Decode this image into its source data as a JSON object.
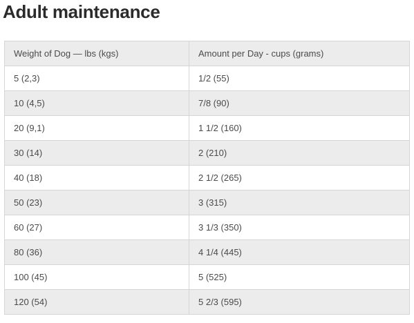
{
  "title": "Adult maintenance",
  "table": {
    "headers": [
      "Weight of Dog — lbs (kgs)",
      "Amount per Day - cups (grams)"
    ],
    "rows": [
      [
        "5 (2,3)",
        "1/2 (55)"
      ],
      [
        "10 (4,5)",
        "7/8 (90)"
      ],
      [
        "20 (9,1)",
        "1 1/2 (160)"
      ],
      [
        "30 (14)",
        "2 (210)"
      ],
      [
        "40 (18)",
        "2 1/2 (265)"
      ],
      [
        "50 (23)",
        "3 (315)"
      ],
      [
        "60 (27)",
        "3 1/3 (350)"
      ],
      [
        "80 (36)",
        "4 1/4 (445)"
      ],
      [
        "100 (45)",
        "5 (525)"
      ],
      [
        "120 (54)",
        "5 2/3 (595)"
      ]
    ]
  },
  "colors": {
    "row_alt": "#ececec",
    "border": "#d5d5d5",
    "title": "#2b2b2b",
    "text": "#4a4a4a"
  }
}
